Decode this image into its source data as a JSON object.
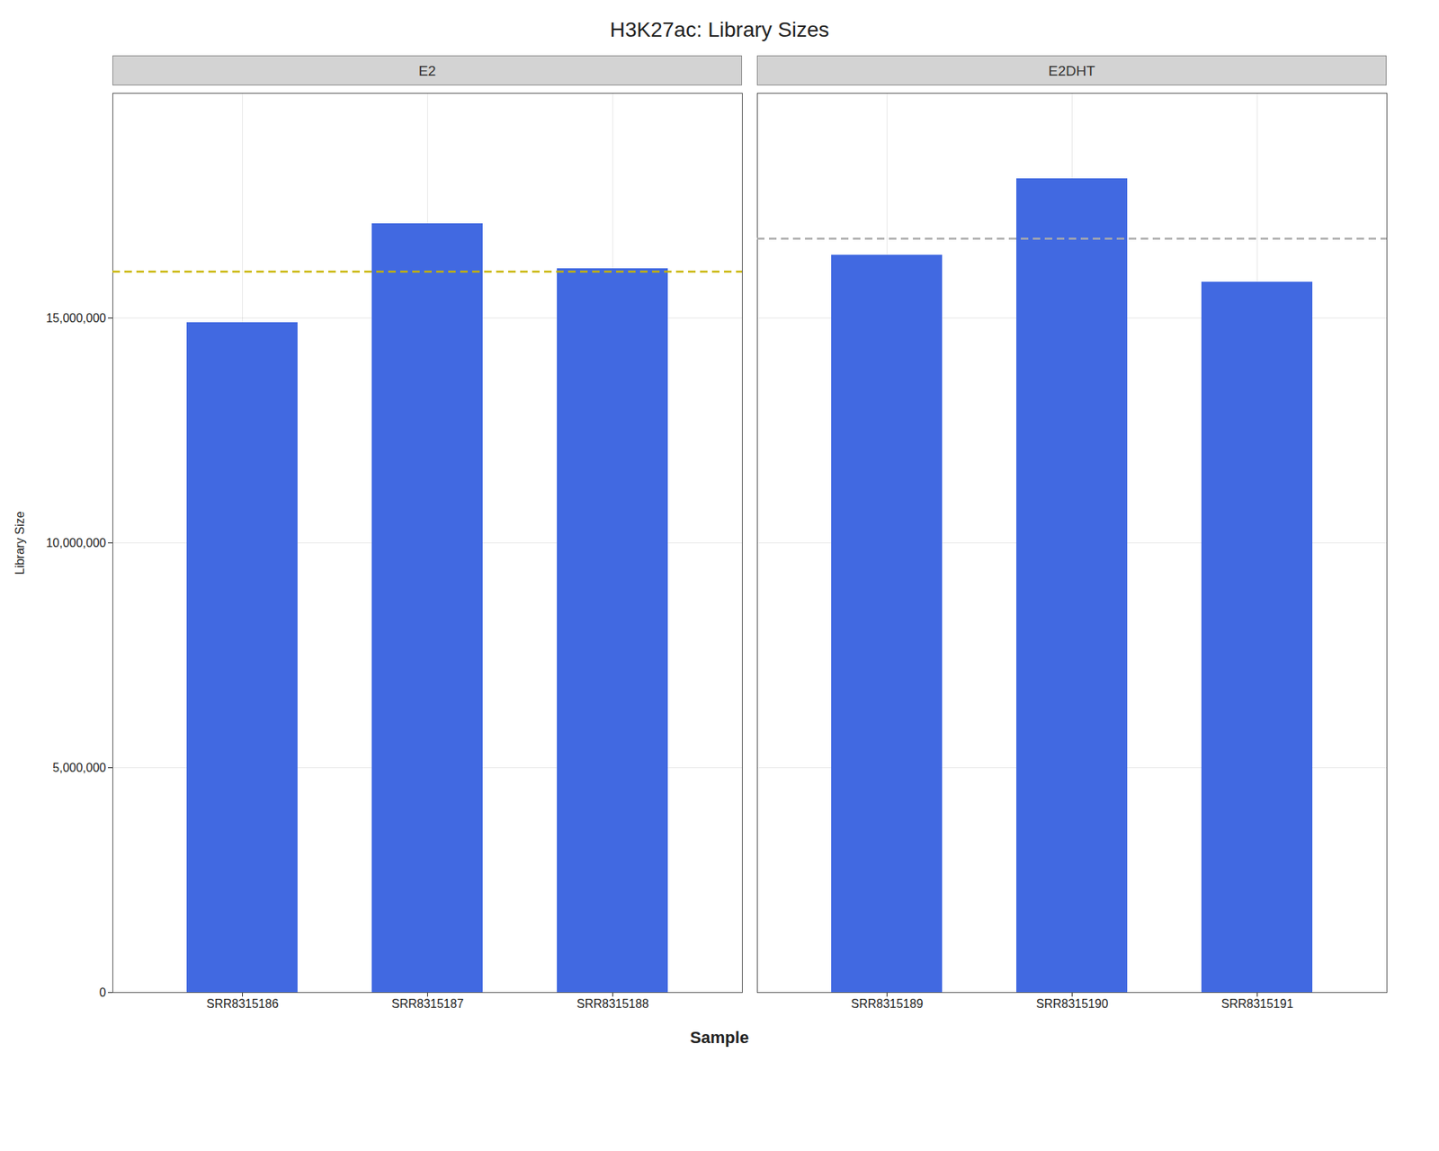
{
  "chart_data": {
    "type": "bar",
    "title": "H3K27ac: Library Sizes",
    "xlabel": "Sample",
    "ylabel": "Library Size",
    "color": "#4169e1",
    "ylim": [
      0,
      20000000
    ],
    "yticks": [
      0,
      {
        "value": 5000000,
        "label": "5,000,000"
      },
      {
        "value": 10000000,
        "label": "10,000,000"
      },
      {
        "value": 15000000,
        "label": "15,000,000"
      }
    ],
    "grid": true,
    "panels": [
      {
        "title": "E2",
        "categories": [
          "SRR8315186",
          "SRR8315187",
          "SRR8315188"
        ],
        "values": [
          14900000,
          17100000,
          16100000
        ],
        "mean_line": {
          "value": 16033333.333333334,
          "color": "#c8b400",
          "line_style": "dashed"
        }
      },
      {
        "title": "E2DHT",
        "categories": [
          "SRR8315189",
          "SRR8315190",
          "SRR8315191"
        ],
        "values": [
          16400000,
          18100000,
          15800000
        ],
        "mean_line": {
          "value": 16766666.666666666,
          "color": "#aaaaaa",
          "line_style": "dashed"
        }
      }
    ]
  }
}
